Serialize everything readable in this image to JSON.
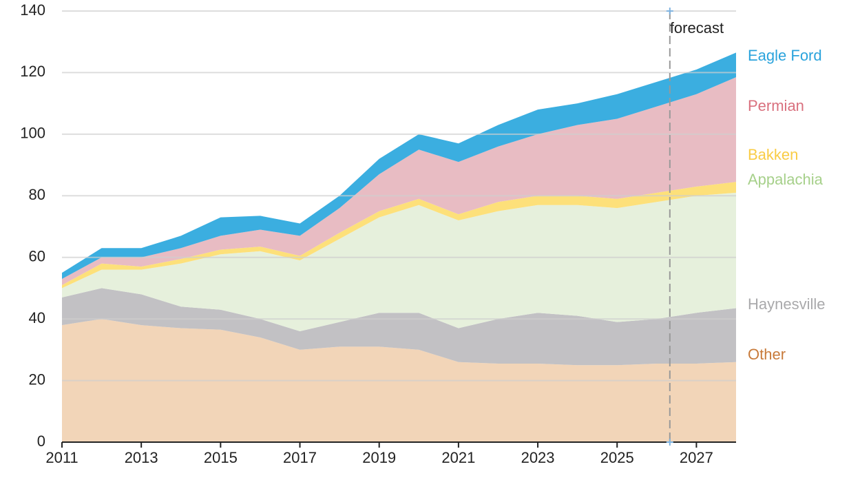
{
  "chart_data": {
    "type": "stacked_area",
    "x": [
      2011,
      2012,
      2013,
      2014,
      2015,
      2016,
      2017,
      2018,
      2019,
      2020,
      2021,
      2022,
      2023,
      2024,
      2025,
      2026,
      2027,
      2028
    ],
    "series": [
      {
        "name": "Other",
        "color": "#f2d5b8",
        "label_color": "#c87a3a",
        "values": [
          38,
          40,
          38,
          37,
          36.5,
          34,
          30,
          31,
          31,
          30,
          26,
          25.5,
          25.5,
          25,
          25,
          25.5,
          25.5,
          26
        ]
      },
      {
        "name": "Haynesville",
        "color": "#c2c1c4",
        "label_color": "#a9a9ab",
        "values": [
          9,
          10,
          10,
          7,
          6.5,
          6,
          6,
          8,
          11,
          12,
          11,
          14.5,
          16.5,
          16,
          14,
          14.5,
          16.5,
          17.5
        ]
      },
      {
        "name": "Appalachia",
        "color": "#e6f0dc",
        "label_color": "#a6d08a",
        "values": [
          3,
          6,
          8,
          14,
          18,
          22,
          23,
          27,
          31,
          35,
          35,
          35,
          35,
          36,
          37,
          38,
          38,
          37.5
        ]
      },
      {
        "name": "Bakken",
        "color": "#fde07a",
        "label_color": "#f9cc45",
        "values": [
          1,
          2,
          1,
          1.5,
          1.5,
          1.5,
          1.5,
          2,
          2,
          2,
          2,
          3,
          3,
          3,
          3,
          3,
          3,
          3.5
        ]
      },
      {
        "name": "Permian",
        "color": "#e8bcc3",
        "label_color": "#d9707e",
        "values": [
          2,
          2,
          3,
          3.5,
          4.5,
          5.5,
          6.5,
          8,
          12,
          16,
          17,
          18,
          20,
          23,
          26,
          28,
          30,
          34
        ]
      },
      {
        "name": "Eagle Ford",
        "color": "#3baee0",
        "label_color": "#2aa3dc",
        "values": [
          2,
          3,
          3,
          4,
          6,
          4.5,
          4,
          4,
          5,
          5,
          6,
          7,
          8,
          7,
          8,
          8,
          8,
          8
        ]
      }
    ],
    "xlim": [
      2011,
      2028
    ],
    "xticks": [
      2011,
      2013,
      2015,
      2017,
      2019,
      2021,
      2023,
      2025,
      2027
    ],
    "ylim": [
      0,
      140
    ],
    "yticks": [
      0,
      20,
      40,
      60,
      80,
      100,
      120,
      140
    ],
    "grid": true,
    "annotations": [
      {
        "text": "forecast",
        "x": 2026.33
      }
    ]
  }
}
